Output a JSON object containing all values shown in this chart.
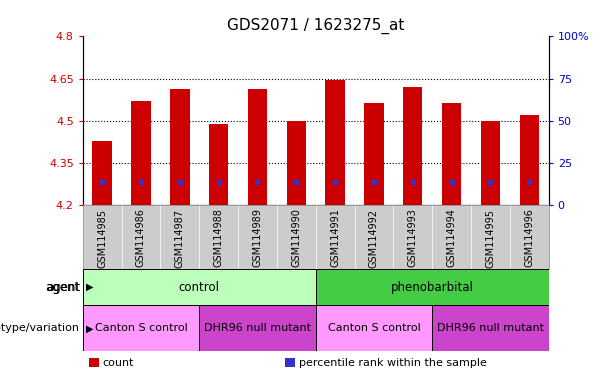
{
  "title": "GDS2071 / 1623275_at",
  "samples": [
    "GSM114985",
    "GSM114986",
    "GSM114987",
    "GSM114988",
    "GSM114989",
    "GSM114990",
    "GSM114991",
    "GSM114992",
    "GSM114993",
    "GSM114994",
    "GSM114995",
    "GSM114996"
  ],
  "bar_tops": [
    4.43,
    4.57,
    4.615,
    4.49,
    4.615,
    4.5,
    4.645,
    4.565,
    4.62,
    4.565,
    4.5,
    4.52
  ],
  "blue_marks": [
    4.285,
    4.285,
    4.285,
    4.285,
    4.285,
    4.285,
    4.285,
    4.285,
    4.285,
    4.285,
    4.285,
    4.285
  ],
  "bar_bottom": 4.2,
  "ylim_left": [
    4.2,
    4.8
  ],
  "yticks_left": [
    4.2,
    4.35,
    4.5,
    4.65,
    4.8
  ],
  "ytick_labels_left": [
    "4.2",
    "4.35",
    "4.5",
    "4.65",
    "4.8"
  ],
  "ylim_right": [
    0,
    100
  ],
  "yticks_right": [
    0,
    25,
    50,
    75,
    100
  ],
  "ytick_labels_right": [
    "0",
    "25",
    "50",
    "75",
    "100%"
  ],
  "hlines": [
    4.35,
    4.5,
    4.65
  ],
  "bar_color": "#cc0000",
  "blue_color": "#3333cc",
  "agent_groups": [
    {
      "label": "control",
      "start": 0,
      "end": 6,
      "color": "#bbffbb"
    },
    {
      "label": "phenobarbital",
      "start": 6,
      "end": 12,
      "color": "#44cc44"
    }
  ],
  "genotype_groups": [
    {
      "label": "Canton S control",
      "start": 0,
      "end": 3,
      "color": "#ff99ff"
    },
    {
      "label": "DHR96 null mutant",
      "start": 3,
      "end": 6,
      "color": "#cc44cc"
    },
    {
      "label": "Canton S control",
      "start": 6,
      "end": 9,
      "color": "#ff99ff"
    },
    {
      "label": "DHR96 null mutant",
      "start": 9,
      "end": 12,
      "color": "#cc44cc"
    }
  ],
  "legend_items": [
    {
      "label": "count",
      "color": "#cc0000"
    },
    {
      "label": "percentile rank within the sample",
      "color": "#3333cc"
    }
  ],
  "xlabel_rotation": 90,
  "bar_width": 0.5,
  "background_color": "#ffffff",
  "xtick_bg_color": "#cccccc",
  "grid_color": "#000000",
  "tick_label_color_left": "#cc0000",
  "tick_label_color_right": "#0000cc",
  "title_fontsize": 11,
  "tick_fontsize": 8,
  "label_fontsize": 8.5
}
